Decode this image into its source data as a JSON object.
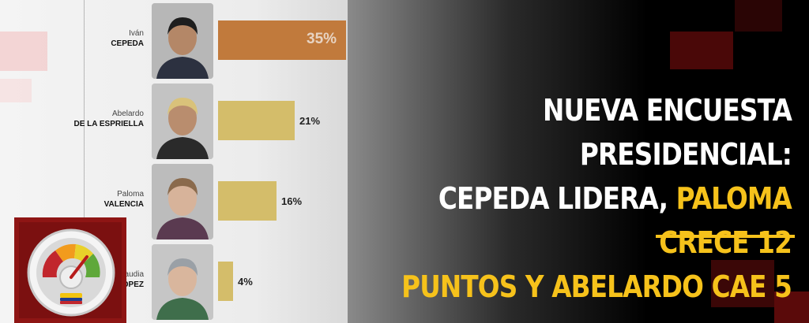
{
  "headline": {
    "line1": [
      {
        "t": "NUEVA ENCUESTA PRESIDENCIAL:",
        "c": "w"
      }
    ],
    "line2": [
      {
        "t": "CEPEDA LIDERA, ",
        "c": "w"
      },
      {
        "t": "PALOMA CRECE 12",
        "c": "y"
      }
    ],
    "line3": [
      {
        "t": "PUNTOS Y ABELARDO CAE 5",
        "c": "y"
      }
    ]
  },
  "colors": {
    "accent_yellow": "#f6c21b",
    "bar_first": "#c17a3c",
    "bar_others": "#d4bd6a",
    "logo_red": "#8e1514"
  },
  "icons": [
    "gauge-icon"
  ],
  "chart_data": {
    "type": "bar",
    "orientation": "horizontal",
    "categories": [
      {
        "first": "Iván",
        "last": "CEPEDA"
      },
      {
        "first": "Abelardo",
        "last": "DE LA ESPRIELLA"
      },
      {
        "first": "Paloma",
        "last": "VALENCIA"
      },
      {
        "first": "audia",
        "last": "ÓPEZ"
      }
    ],
    "values": [
      35,
      21,
      16,
      4
    ],
    "labels": [
      "35%",
      "21%",
      "16%",
      "4%"
    ],
    "xlim": [
      0,
      35
    ],
    "grid": false,
    "legend": "none"
  }
}
